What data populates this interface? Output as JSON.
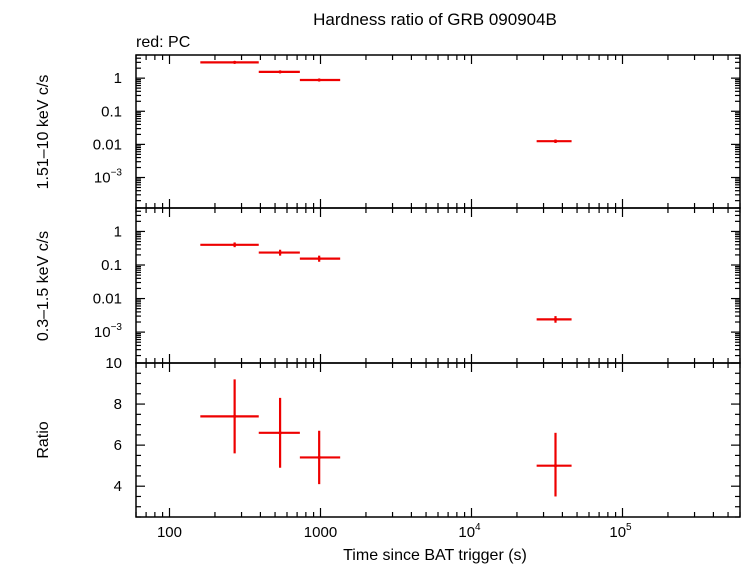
{
  "chart_data": {
    "type": "scatter",
    "title": "Hardness ratio of GRB 090904B",
    "annotation": "red: PC",
    "xlabel": "Time since BAT trigger (s)",
    "xscale": "log",
    "xlim": [
      60,
      600000
    ],
    "x_tick_labels": [
      {
        "value": 100,
        "base": "100",
        "sup": ""
      },
      {
        "value": 1000,
        "base": "1000",
        "sup": ""
      },
      {
        "value": 10000,
        "base": "10",
        "sup": "4"
      },
      {
        "value": 100000,
        "base": "10",
        "sup": "5"
      }
    ],
    "series_color": "#ee0000",
    "panels": [
      {
        "ylabel": "1.51–10 keV c/s",
        "yscale": "log",
        "ylim": [
          0.00012,
          5
        ],
        "y_tick_labels": [
          {
            "value": 1,
            "base": "1",
            "sup": ""
          },
          {
            "value": 0.1,
            "base": "0.1",
            "sup": ""
          },
          {
            "value": 0.01,
            "base": "0.01",
            "sup": ""
          },
          {
            "value": 0.001,
            "base": "10",
            "sup": "−3"
          }
        ],
        "points": [
          {
            "x": 270,
            "xlo": 160,
            "xhi": 390,
            "y": 3.0,
            "ylo": 2.8,
            "yhi": 3.2
          },
          {
            "x": 540,
            "xlo": 390,
            "xhi": 730,
            "y": 1.55,
            "ylo": 1.45,
            "yhi": 1.65
          },
          {
            "x": 980,
            "xlo": 730,
            "xhi": 1350,
            "y": 0.88,
            "ylo": 0.82,
            "yhi": 0.94
          },
          {
            "x": 36000,
            "xlo": 27000,
            "xhi": 46000,
            "y": 0.0125,
            "ylo": 0.011,
            "yhi": 0.014
          }
        ]
      },
      {
        "ylabel": "0.3–1.5 keV c/s",
        "yscale": "log",
        "ylim": [
          0.00012,
          5
        ],
        "y_tick_labels": [
          {
            "value": 1,
            "base": "1",
            "sup": ""
          },
          {
            "value": 0.1,
            "base": "0.1",
            "sup": ""
          },
          {
            "value": 0.01,
            "base": "0.01",
            "sup": ""
          },
          {
            "value": 0.001,
            "base": "10",
            "sup": "−3"
          }
        ],
        "points": [
          {
            "x": 270,
            "xlo": 160,
            "xhi": 390,
            "y": 0.4,
            "ylo": 0.34,
            "yhi": 0.47
          },
          {
            "x": 540,
            "xlo": 390,
            "xhi": 730,
            "y": 0.235,
            "ylo": 0.19,
            "yhi": 0.285
          },
          {
            "x": 980,
            "xlo": 730,
            "xhi": 1350,
            "y": 0.155,
            "ylo": 0.125,
            "yhi": 0.19
          },
          {
            "x": 36000,
            "xlo": 27000,
            "xhi": 46000,
            "y": 0.0024,
            "ylo": 0.0019,
            "yhi": 0.003
          }
        ]
      },
      {
        "ylabel": "Ratio",
        "yscale": "linear",
        "ylim": [
          2.5,
          10
        ],
        "y_tick_labels": [
          {
            "value": 4,
            "base": "4",
            "sup": ""
          },
          {
            "value": 6,
            "base": "6",
            "sup": ""
          },
          {
            "value": 8,
            "base": "8",
            "sup": ""
          },
          {
            "value": 10,
            "base": "10",
            "sup": ""
          }
        ],
        "points": [
          {
            "x": 270,
            "xlo": 160,
            "xhi": 390,
            "y": 7.4,
            "ylo": 5.6,
            "yhi": 9.2
          },
          {
            "x": 540,
            "xlo": 390,
            "xhi": 730,
            "y": 6.6,
            "ylo": 4.9,
            "yhi": 8.3
          },
          {
            "x": 980,
            "xlo": 730,
            "xhi": 1350,
            "y": 5.4,
            "ylo": 4.1,
            "yhi": 6.7
          },
          {
            "x": 36000,
            "xlo": 27000,
            "xhi": 46000,
            "y": 5.0,
            "ylo": 3.5,
            "yhi": 6.6
          }
        ]
      }
    ]
  }
}
